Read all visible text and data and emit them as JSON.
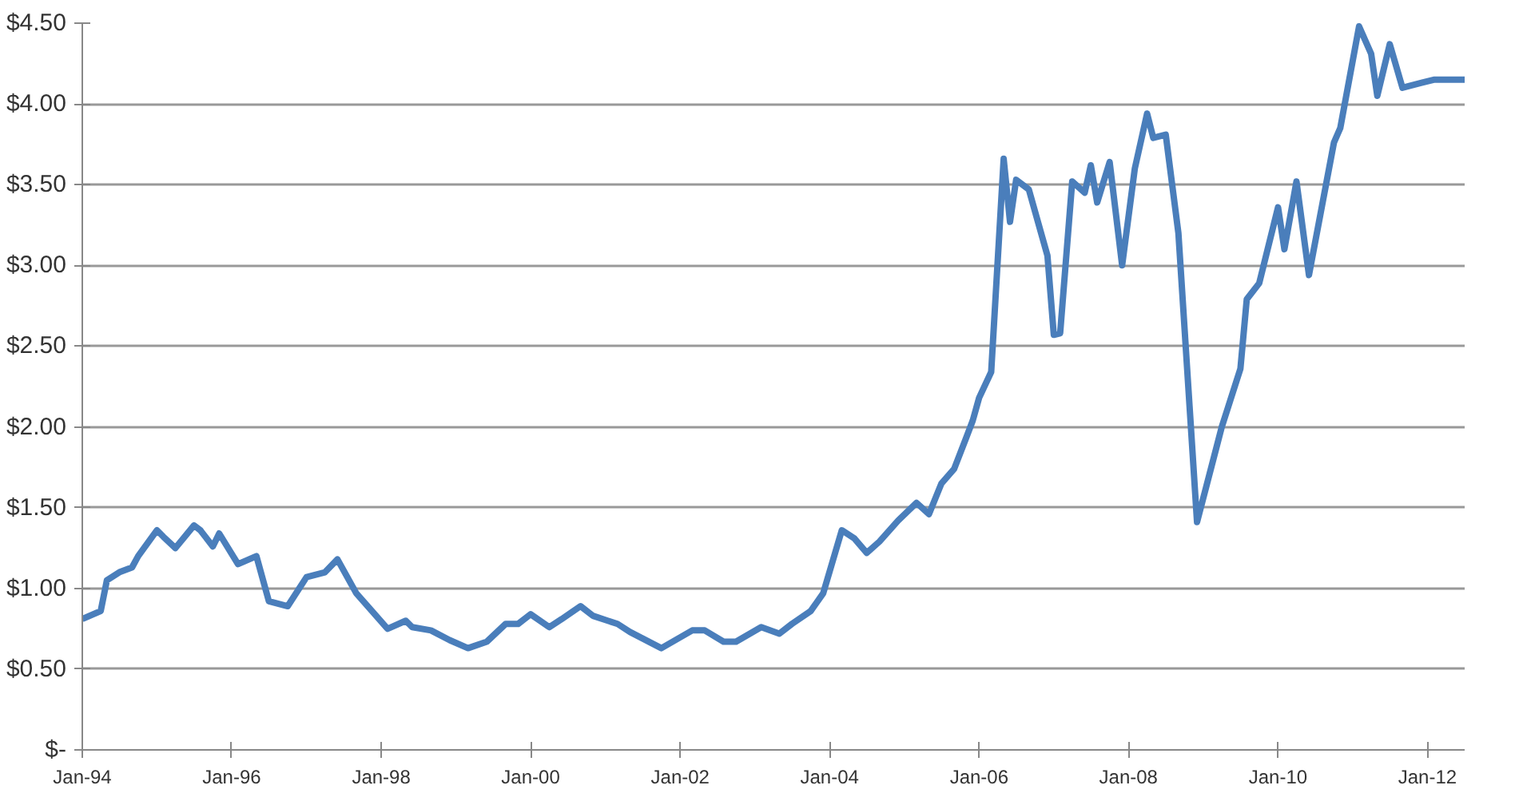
{
  "chart_data": {
    "type": "line",
    "x": [
      "1994-01",
      "1994-04",
      "1994-05",
      "1994-07",
      "1994-09",
      "1994-10",
      "1995-01",
      "1995-02",
      "1995-04",
      "1995-07",
      "1995-08",
      "1995-10",
      "1995-11",
      "1996-02",
      "1996-05",
      "1996-07",
      "1996-10",
      "1997-01",
      "1997-04",
      "1997-06",
      "1997-09",
      "1998-02",
      "1998-05",
      "1998-06",
      "1998-09",
      "1998-12",
      "1999-03",
      "1999-06",
      "1999-09",
      "1999-11",
      "2000-01",
      "2000-04",
      "2000-06",
      "2000-09",
      "2000-11",
      "2001-03",
      "2001-05",
      "2001-10",
      "2002-03",
      "2002-05",
      "2002-08",
      "2002-10",
      "2003-02",
      "2003-05",
      "2003-07",
      "2003-10",
      "2003-12",
      "2004-03",
      "2004-05",
      "2004-07",
      "2004-09",
      "2004-12",
      "2005-03",
      "2005-05",
      "2005-07",
      "2005-09",
      "2005-11",
      "2005-12",
      "2006-01",
      "2006-03",
      "2006-05",
      "2006-06",
      "2006-07",
      "2006-09",
      "2006-12",
      "2007-01",
      "2007-02",
      "2007-04",
      "2007-06",
      "2007-07",
      "2007-08",
      "2007-10",
      "2007-12",
      "2008-02",
      "2008-04",
      "2008-05",
      "2008-07",
      "2008-09",
      "2008-12",
      "2009-04",
      "2009-07",
      "2009-08",
      "2009-10",
      "2010-01",
      "2010-02",
      "2010-04",
      "2010-06",
      "2010-10",
      "2010-11",
      "2011-02",
      "2011-04",
      "2011-05",
      "2011-07",
      "2011-09",
      "2012-02",
      "2012-07"
    ],
    "series": [
      {
        "color": "#4a7ebb",
        "values": [
          0.81,
          0.86,
          1.05,
          1.1,
          1.13,
          1.2,
          1.36,
          1.32,
          1.25,
          1.39,
          1.36,
          1.26,
          1.34,
          1.15,
          1.2,
          0.92,
          0.89,
          1.07,
          1.1,
          1.18,
          0.97,
          0.75,
          0.8,
          0.76,
          0.74,
          0.68,
          0.63,
          0.67,
          0.78,
          0.78,
          0.84,
          0.76,
          0.81,
          0.89,
          0.83,
          0.78,
          0.73,
          0.63,
          0.74,
          0.74,
          0.67,
          0.67,
          0.76,
          0.72,
          0.78,
          0.86,
          0.97,
          1.36,
          1.31,
          1.22,
          1.29,
          1.42,
          1.53,
          1.46,
          1.65,
          1.74,
          1.94,
          2.04,
          2.18,
          2.34,
          3.66,
          3.27,
          3.53,
          3.47,
          3.06,
          2.57,
          2.58,
          3.52,
          3.45,
          3.62,
          3.39,
          3.64,
          3.0,
          3.6,
          3.94,
          3.79,
          3.81,
          3.2,
          1.41,
          2.0,
          2.36,
          2.79,
          2.89,
          3.36,
          3.1,
          3.52,
          2.94,
          3.76,
          3.85,
          4.48,
          4.31,
          4.05,
          4.37,
          4.1,
          4.15,
          4.15
        ]
      }
    ],
    "xlim": [
      "1994-01",
      "2012-07"
    ],
    "xticks": [
      {
        "value": "1994-01",
        "label": "Jan-94"
      },
      {
        "value": "1996-01",
        "label": "Jan-96"
      },
      {
        "value": "1998-01",
        "label": "Jan-98"
      },
      {
        "value": "2000-01",
        "label": "Jan-00"
      },
      {
        "value": "2002-01",
        "label": "Jan-02"
      },
      {
        "value": "2004-01",
        "label": "Jan-04"
      },
      {
        "value": "2006-01",
        "label": "Jan-06"
      },
      {
        "value": "2008-01",
        "label": "Jan-08"
      },
      {
        "value": "2010-01",
        "label": "Jan-10"
      },
      {
        "value": "2012-01",
        "label": "Jan-12"
      }
    ],
    "ylim": [
      0,
      4.5
    ],
    "yticks": [
      {
        "value": 0,
        "label": "$-"
      },
      {
        "value": 0.5,
        "label": "$0.50"
      },
      {
        "value": 1.0,
        "label": "$1.00"
      },
      {
        "value": 1.5,
        "label": "$1.50"
      },
      {
        "value": 2.0,
        "label": "$2.00"
      },
      {
        "value": 2.5,
        "label": "$2.50"
      },
      {
        "value": 3.0,
        "label": "$3.00"
      },
      {
        "value": 3.5,
        "label": "$3.50"
      },
      {
        "value": 4.0,
        "label": "$4.00"
      },
      {
        "value": 4.5,
        "label": "$4.50"
      }
    ],
    "grid": "y",
    "line_style": "solid"
  }
}
